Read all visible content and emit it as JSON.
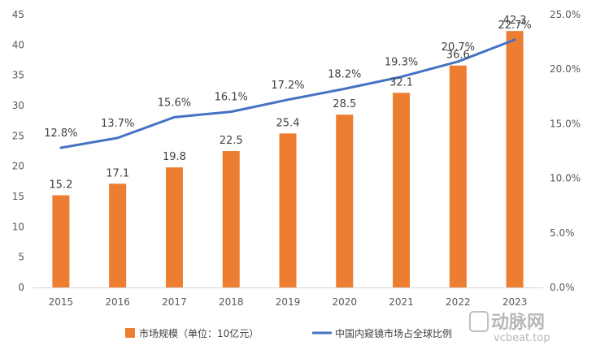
{
  "chart_data": {
    "type": "bar",
    "categories": [
      "2015",
      "2016",
      "2017",
      "2018",
      "2019",
      "2020",
      "2021",
      "2022",
      "2023"
    ],
    "series": [
      {
        "name": "市场规模（单位：10亿元）",
        "type": "bar",
        "axis": "left",
        "values": [
          15.2,
          17.1,
          19.8,
          22.5,
          25.4,
          28.5,
          32.1,
          36.6,
          42.3
        ],
        "labels": [
          "15.2",
          "17.1",
          "19.8",
          "22.5",
          "25.4",
          "28.5",
          "32.1",
          "36.6",
          "42.3"
        ]
      },
      {
        "name": "中国内窥镜市场占全球比例",
        "type": "line",
        "axis": "right",
        "values": [
          12.8,
          13.7,
          15.6,
          16.1,
          17.2,
          18.2,
          19.3,
          20.7,
          22.7
        ],
        "labels": [
          "12.8%",
          "13.7%",
          "15.6%",
          "16.1%",
          "17.2%",
          "18.2%",
          "19.3%",
          "20.7%",
          "22.7%"
        ]
      }
    ],
    "y_left": {
      "ylim": [
        0,
        45
      ],
      "ticks": [
        "0",
        "5",
        "10",
        "15",
        "20",
        "25",
        "30",
        "35",
        "40",
        "45"
      ]
    },
    "y_right": {
      "ylim": [
        0,
        25
      ],
      "ticks": [
        "0.0%",
        "5.0%",
        "10.0%",
        "15.0%",
        "20.0%",
        "25.0%"
      ]
    },
    "grid": false,
    "legend": "bottom",
    "colors": {
      "bar": "#ED7D31",
      "line": "#4472C4"
    }
  },
  "watermark": {
    "text_cn": "动脉网",
    "text_en": "vcbeat.top"
  }
}
